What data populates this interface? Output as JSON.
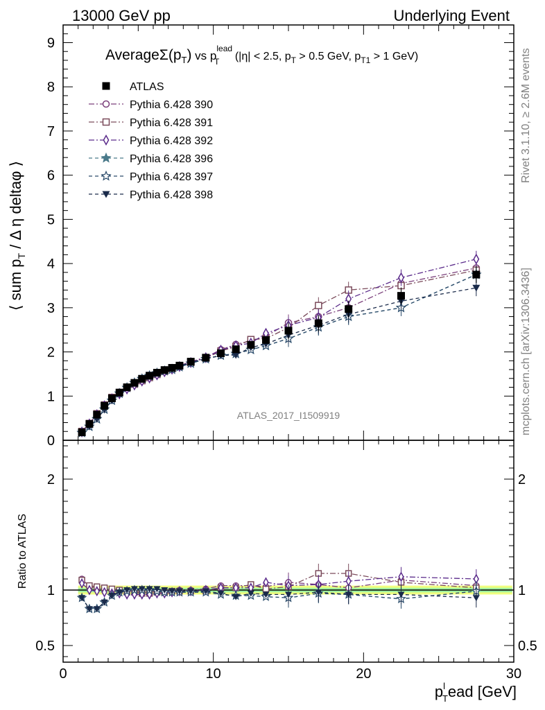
{
  "header": {
    "left": "13000 GeV pp",
    "right": "Underlying Event"
  },
  "side_labels": {
    "rivet": "Rivet 3.1.10, ≥ 2.6M events",
    "mcplots": "mcplots.cern.ch [arXiv:1306.3436]"
  },
  "watermark": "ATLAS_2017_I1509919",
  "colors": {
    "p390": "#7b3f7b",
    "p391": "#7a4a5a",
    "p392": "#5a2a8a",
    "p396": "#4a7a8a",
    "p397": "#2a4a6a",
    "p398": "#1a2a4a",
    "atlas": "#000000",
    "band_outer": "#f0ff80",
    "band_inner": "#a0f0a0"
  },
  "chart_data": [
    {
      "type": "scatter",
      "title_parts": {
        "average": "Average",
        "sigma": "Σ(p",
        "sigma_sub": "T",
        "sigma_close": ")",
        "vs": " vs p",
        "lead_sup": "lead",
        "lead_sub": "T",
        "cuts": " (|η| < 2.5, p",
        "cut_sub1": "T",
        "cut_mid": " > 0.5 GeV, p",
        "cut_sub2": "T1",
        "cut_end": " > 1 GeV)"
      },
      "ylabel": "⟨ sum p",
      "ylabel_sub": "T",
      "ylabel_rest": " / Δ η deltaφ ⟩",
      "xlim": [
        0,
        30
      ],
      "ylim": [
        0,
        9.4
      ],
      "yticks": [
        "0",
        "1",
        "2",
        "3",
        "4",
        "5",
        "6",
        "7",
        "8",
        "9"
      ],
      "x": [
        1.25,
        1.75,
        2.25,
        2.75,
        3.25,
        3.75,
        4.25,
        4.75,
        5.25,
        5.75,
        6.25,
        6.75,
        7.25,
        7.75,
        8.5,
        9.5,
        10.5,
        11.5,
        12.5,
        13.5,
        15.0,
        17.0,
        19.0,
        22.5,
        27.5
      ],
      "series": [
        {
          "name": "ATLAS",
          "marker": "square-filled",
          "color": "#000000",
          "values": [
            0.18,
            0.37,
            0.58,
            0.78,
            0.95,
            1.08,
            1.2,
            1.3,
            1.39,
            1.46,
            1.53,
            1.59,
            1.64,
            1.69,
            1.78,
            1.87,
            1.97,
            2.06,
            2.16,
            2.27,
            2.48,
            2.65,
            2.97,
            3.27,
            3.75
          ]
        },
        {
          "name": "Pythia 6.428 390",
          "marker": "circle-open",
          "color": "#7b3f7b",
          "values": [
            0.2,
            0.38,
            0.59,
            0.79,
            0.97,
            1.09,
            1.2,
            1.29,
            1.37,
            1.44,
            1.51,
            1.58,
            1.63,
            1.69,
            1.78,
            1.88,
            2.05,
            2.17,
            2.25,
            2.35,
            2.66,
            2.8,
            3.0,
            3.55,
            3.9
          ]
        },
        {
          "name": "Pythia 6.428 391",
          "marker": "square-open",
          "color": "#7a4a5a",
          "values": [
            0.2,
            0.38,
            0.6,
            0.8,
            0.97,
            1.08,
            1.18,
            1.27,
            1.35,
            1.42,
            1.49,
            1.56,
            1.62,
            1.68,
            1.76,
            1.86,
            2.02,
            2.12,
            2.28,
            2.3,
            2.55,
            3.05,
            3.4,
            3.5,
            3.85
          ]
        },
        {
          "name": "Pythia 6.428 392",
          "marker": "diamond-open",
          "color": "#5a2a8a",
          "values": [
            0.19,
            0.37,
            0.58,
            0.78,
            0.94,
            1.05,
            1.16,
            1.25,
            1.34,
            1.41,
            1.48,
            1.55,
            1.61,
            1.67,
            1.76,
            1.87,
            2.04,
            2.14,
            2.2,
            2.42,
            2.6,
            2.78,
            3.2,
            3.68,
            4.1
          ]
        },
        {
          "name": "Pythia 6.428 396",
          "marker": "star-filled",
          "color": "#4a7a8a",
          "values": [
            0.17,
            0.31,
            0.48,
            0.7,
            0.9,
            1.06,
            1.19,
            1.3,
            1.39,
            1.46,
            1.52,
            1.57,
            1.6,
            1.66,
            1.74,
            1.84,
            1.92,
            1.96,
            2.05,
            2.14,
            2.3,
            2.56,
            2.8,
            3.0,
            3.75
          ]
        },
        {
          "name": "Pythia 6.428 397",
          "marker": "star-open",
          "color": "#2a4a6a",
          "values": [
            0.17,
            0.31,
            0.48,
            0.7,
            0.9,
            1.06,
            1.19,
            1.3,
            1.39,
            1.46,
            1.52,
            1.57,
            1.6,
            1.66,
            1.74,
            1.84,
            1.92,
            1.96,
            2.05,
            2.14,
            2.3,
            2.56,
            2.8,
            3.0,
            3.75
          ]
        },
        {
          "name": "Pythia 6.428 398",
          "marker": "triangle-down-filled",
          "color": "#1a2a4a",
          "values": [
            0.17,
            0.31,
            0.48,
            0.69,
            0.9,
            1.06,
            1.2,
            1.31,
            1.41,
            1.48,
            1.54,
            1.59,
            1.63,
            1.68,
            1.76,
            1.85,
            1.92,
            1.93,
            2.1,
            2.18,
            2.38,
            2.6,
            2.85,
            3.15,
            3.45
          ]
        }
      ]
    },
    {
      "type": "line",
      "ylabel": "Ratio to ATLAS",
      "xlabel": "p",
      "xlabel_sub": "T",
      "xlabel_sup": "l",
      "xlabel_rest": "ead [GeV]",
      "xlim": [
        0,
        30
      ],
      "ylim": [
        0.35,
        2.35
      ],
      "xticks": [
        "0",
        "10",
        "20",
        "30"
      ],
      "yticks": [
        "0.5",
        "1",
        "2"
      ],
      "x": [
        1.25,
        1.75,
        2.25,
        2.75,
        3.25,
        3.75,
        4.25,
        4.75,
        5.25,
        5.75,
        6.25,
        6.75,
        7.25,
        7.75,
        8.5,
        9.5,
        10.5,
        11.5,
        12.5,
        13.5,
        15.0,
        17.0,
        19.0,
        22.5,
        27.5
      ],
      "series": [
        {
          "name": "Pythia 6.428 390",
          "values": [
            1.1,
            1.03,
            1.02,
            1.01,
            1.0,
            1.0,
            0.99,
            0.99,
            0.98,
            0.98,
            0.99,
            0.99,
            0.99,
            1.0,
            1.0,
            1.01,
            1.04,
            1.04,
            1.04,
            1.03,
            1.07,
            1.05,
            1.02,
            1.09,
            1.04
          ]
        },
        {
          "name": "Pythia 6.428 391",
          "values": [
            1.09,
            1.04,
            1.03,
            1.02,
            1.01,
            1.0,
            0.98,
            0.98,
            0.97,
            0.97,
            0.98,
            0.98,
            0.99,
            0.99,
            0.99,
            0.99,
            1.02,
            1.02,
            1.05,
            1.01,
            1.03,
            1.15,
            1.15,
            1.07,
            1.02
          ]
        },
        {
          "name": "Pythia 6.428 392",
          "values": [
            1.06,
            1.0,
            0.99,
            0.98,
            0.97,
            0.97,
            0.96,
            0.96,
            0.96,
            0.96,
            0.97,
            0.97,
            0.98,
            0.99,
            0.99,
            1.0,
            1.02,
            1.02,
            1.02,
            1.07,
            1.04,
            1.05,
            1.08,
            1.12,
            1.1
          ]
        },
        {
          "name": "Pythia 6.428 396",
          "values": [
            0.93,
            0.83,
            0.83,
            0.89,
            0.95,
            0.98,
            0.99,
            1.0,
            1.0,
            1.0,
            0.99,
            0.98,
            0.98,
            0.98,
            0.98,
            0.98,
            0.96,
            0.95,
            0.95,
            0.94,
            0.93,
            0.97,
            0.96,
            0.92,
            0.99
          ]
        },
        {
          "name": "Pythia 6.428 397",
          "values": [
            0.93,
            0.83,
            0.83,
            0.89,
            0.95,
            0.98,
            0.99,
            1.0,
            1.0,
            1.0,
            0.99,
            0.98,
            0.98,
            0.98,
            0.98,
            0.98,
            0.96,
            0.95,
            0.95,
            0.94,
            0.93,
            0.97,
            0.96,
            0.92,
            0.99
          ]
        },
        {
          "name": "Pythia 6.428 398",
          "values": [
            0.93,
            0.83,
            0.83,
            0.89,
            0.95,
            0.98,
            1.0,
            1.01,
            1.01,
            1.01,
            1.01,
            1.0,
            0.99,
            0.99,
            0.99,
            0.99,
            0.97,
            0.94,
            0.97,
            0.96,
            0.96,
            0.98,
            0.96,
            0.96,
            0.93
          ]
        }
      ]
    }
  ]
}
